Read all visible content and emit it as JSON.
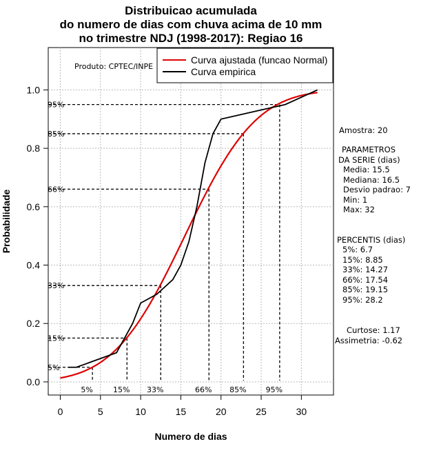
{
  "chart_data": {
    "type": "line",
    "title_lines": [
      "Distribuicao acumulada",
      "do numero de dias com chuva acima de 10 mm",
      "no trimestre NDJ (1998-2017): Regiao 16"
    ],
    "xlabel": "Numero de dias",
    "ylabel": "Probabilidade",
    "xlim": [
      -1.5,
      34
    ],
    "ylim": [
      -0.045,
      1.145
    ],
    "xticks": [
      0,
      5,
      10,
      15,
      20,
      25,
      30
    ],
    "yticks": [
      0.0,
      0.2,
      0.4,
      0.6,
      0.8,
      1.0
    ],
    "ytick_labels": [
      "0.0",
      "0.2",
      "0.4",
      "0.6",
      "0.8",
      "1.0"
    ],
    "grid": true,
    "legend_position": "top-right",
    "product_label": "Produto: CPTEC/INPE",
    "series": [
      {
        "name": "Curva ajustada (funcao Normal)",
        "color": "#dd0000",
        "kind": "normal_cdf",
        "mean": 15.5,
        "sd": 7,
        "x_range": [
          0,
          32
        ]
      },
      {
        "name": "Curva empirica",
        "color": "#000000",
        "kind": "points",
        "x": [
          1,
          2,
          7,
          9,
          10,
          12,
          14,
          15,
          16,
          17,
          18,
          19,
          20,
          28,
          32
        ],
        "y": [
          0.05,
          0.05,
          0.1,
          0.2,
          0.27,
          0.3,
          0.35,
          0.4,
          0.48,
          0.6,
          0.75,
          0.85,
          0.9,
          0.95,
          1.0
        ]
      }
    ],
    "percentile_markers": [
      {
        "label": "5%",
        "x": 4,
        "y": 0.05
      },
      {
        "label": "15%",
        "x": 8.3,
        "y": 0.15
      },
      {
        "label": "33%",
        "x": 12.5,
        "y": 0.33
      },
      {
        "label": "66%",
        "x": 18.5,
        "y": 0.66
      },
      {
        "label": "85%",
        "x": 22.8,
        "y": 0.85
      },
      {
        "label": "95%",
        "x": 27.3,
        "y": 0.95
      }
    ],
    "side_panel": [
      "Amostra: 20",
      "PARAMETROS",
      "DA SERIE (dias)",
      "Media: 15.5",
      "Mediana: 16.5",
      "Desvio padrao: 7",
      "Min: 1",
      "Max: 32",
      "PERCENTIS (dias)",
      "5%: 6.7",
      "15%: 8.85",
      "33%: 14.27",
      "66%: 17.54",
      "85%: 19.15",
      "95%: 28.2",
      "Curtose: 1.17",
      "Assimetria: -0.62"
    ]
  }
}
